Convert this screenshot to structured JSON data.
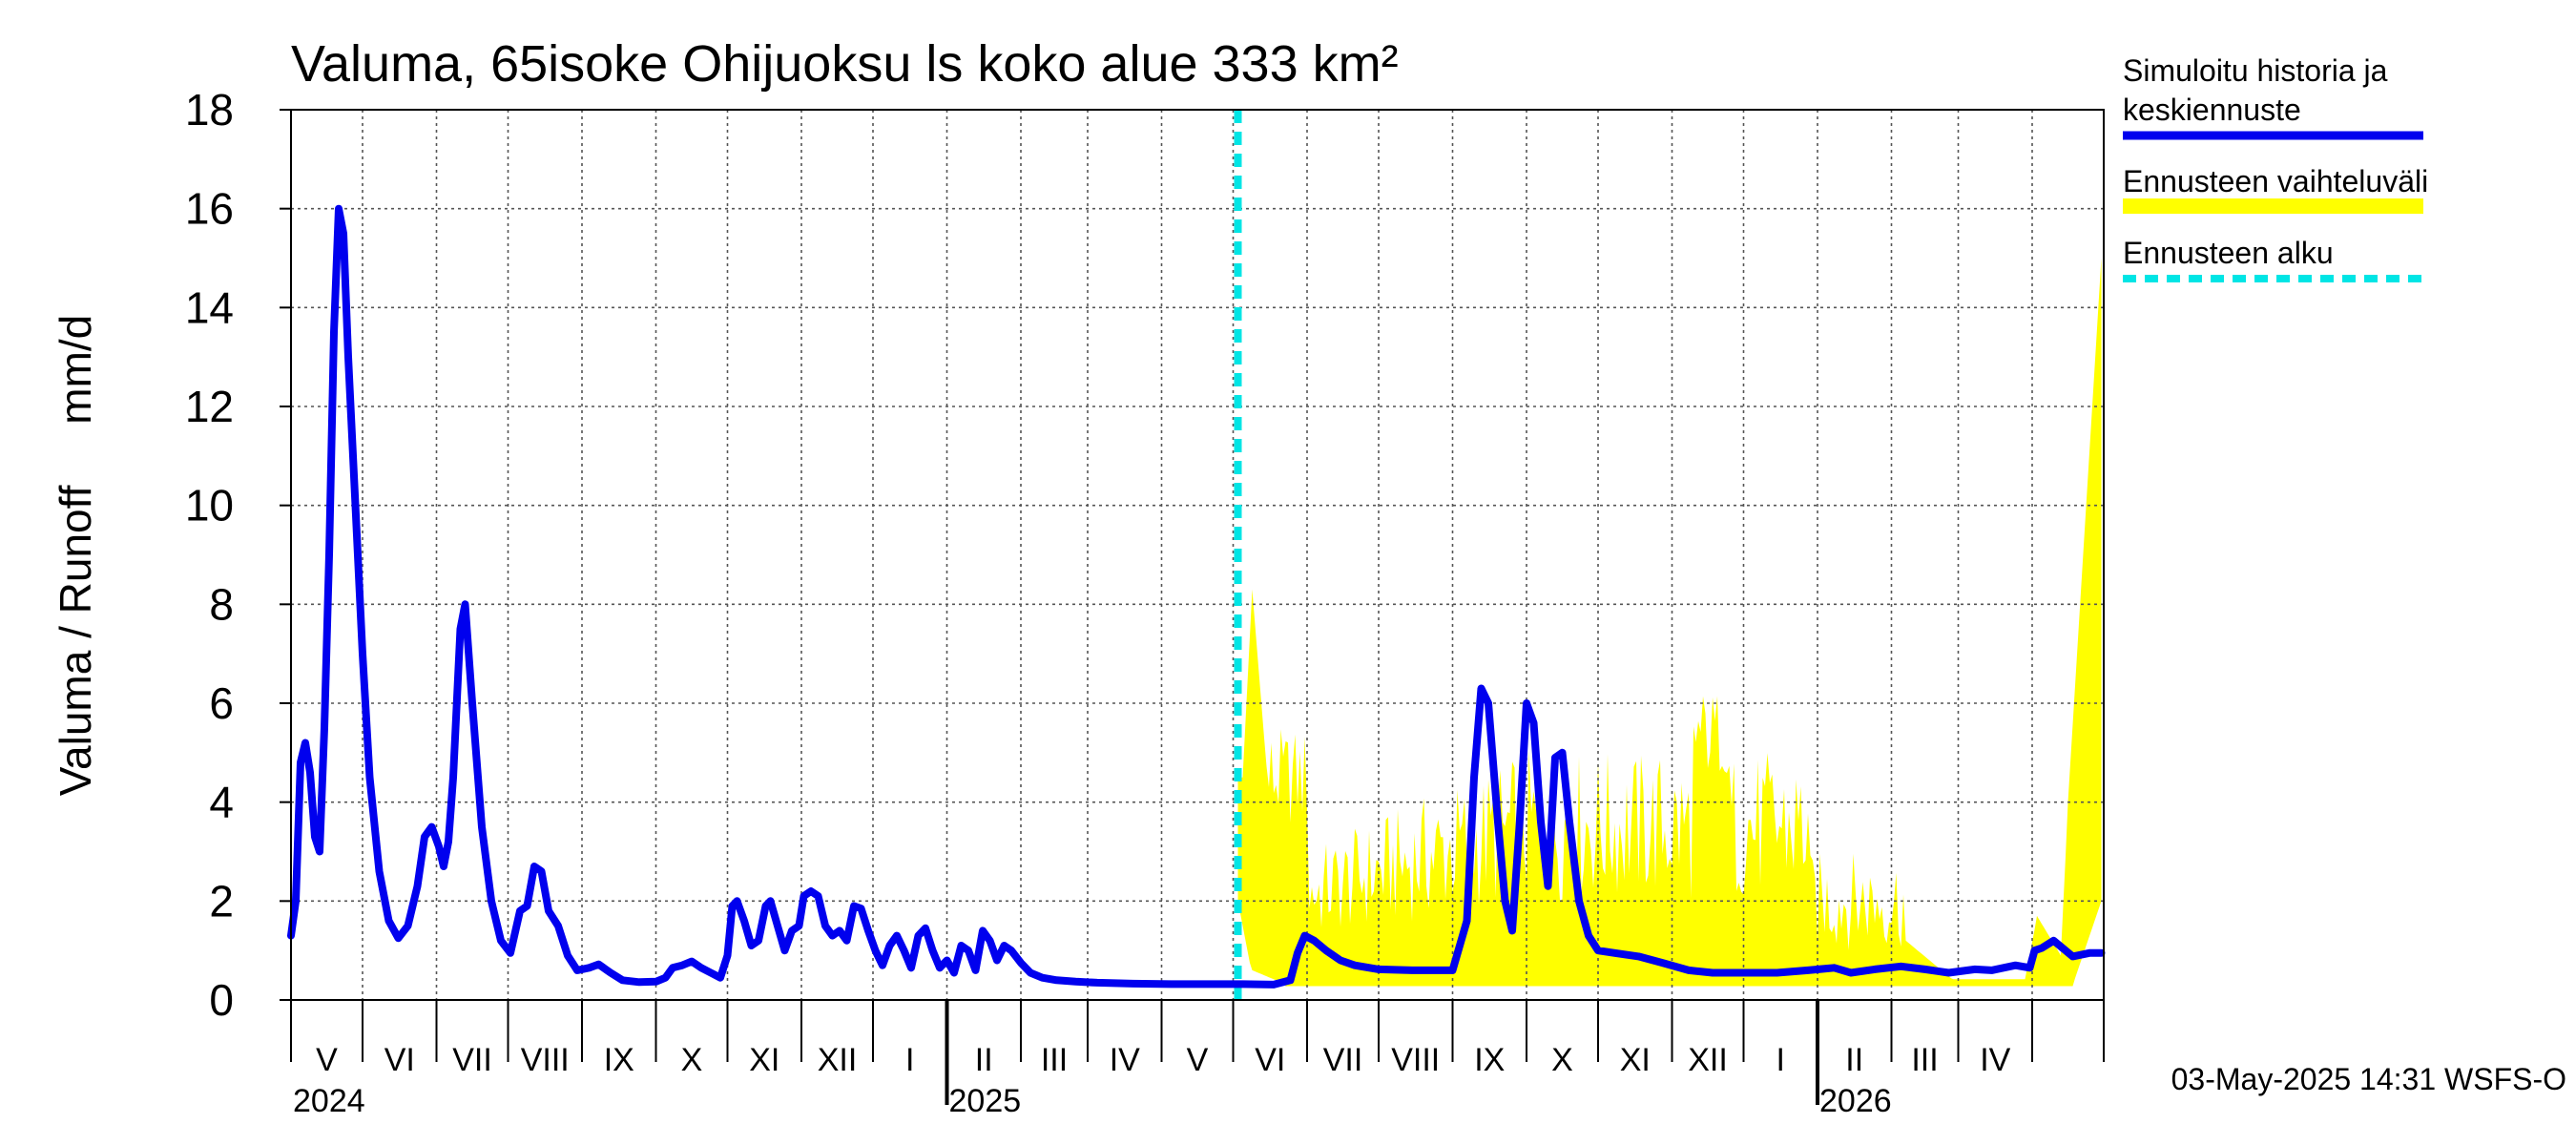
{
  "chart_data": {
    "type": "area",
    "title": "Valuma, 65isoke Ohijuoksu ls koko alue 333 km²",
    "ylabel": "Valuma / Runoff     mm/d",
    "xlabel": "",
    "ylim": [
      0,
      18
    ],
    "yticks": [
      0,
      2,
      4,
      6,
      8,
      10,
      12,
      14,
      16,
      18
    ],
    "xlim": [
      "2024-04-01",
      "2026-05-01"
    ],
    "grid": true,
    "legend_position": "right",
    "month_labels": [
      "V",
      "VI",
      "VII",
      "VIII",
      "IX",
      "X",
      "XI",
      "XII",
      "I",
      "II",
      "III",
      "IV",
      "V",
      "VI",
      "VII",
      "VIII",
      "IX",
      "X",
      "XI",
      "XII",
      "I",
      "II",
      "III",
      "IV"
    ],
    "year_labels": [
      "2024",
      "2025",
      "2026"
    ],
    "forecast_start": "2025-05-03",
    "series": [
      {
        "name": "Simuloitu historia ja keskiennuste",
        "color": "#0000ee",
        "points": [
          [
            "2024-04-01",
            1.3
          ],
          [
            "2024-04-03",
            2.0
          ],
          [
            "2024-04-05",
            4.8
          ],
          [
            "2024-04-07",
            5.2
          ],
          [
            "2024-04-09",
            4.6
          ],
          [
            "2024-04-11",
            3.3
          ],
          [
            "2024-04-13",
            3.0
          ],
          [
            "2024-04-15",
            5.5
          ],
          [
            "2024-04-17",
            9.0
          ],
          [
            "2024-04-19",
            13.5
          ],
          [
            "2024-04-21",
            16.0
          ],
          [
            "2024-04-23",
            15.5
          ],
          [
            "2024-04-25",
            13.0
          ],
          [
            "2024-04-28",
            10.0
          ],
          [
            "2024-05-01",
            7.0
          ],
          [
            "2024-05-04",
            4.5
          ],
          [
            "2024-05-08",
            2.6
          ],
          [
            "2024-05-12",
            1.6
          ],
          [
            "2024-05-16",
            1.25
          ],
          [
            "2024-05-20",
            1.5
          ],
          [
            "2024-05-24",
            2.3
          ],
          [
            "2024-05-27",
            3.3
          ],
          [
            "2024-05-30",
            3.5
          ],
          [
            "2024-06-02",
            3.1
          ],
          [
            "2024-06-04",
            2.7
          ],
          [
            "2024-06-06",
            3.2
          ],
          [
            "2024-06-08",
            4.5
          ],
          [
            "2024-06-11",
            7.5
          ],
          [
            "2024-06-13",
            8.0
          ],
          [
            "2024-06-16",
            6.0
          ],
          [
            "2024-06-20",
            3.5
          ],
          [
            "2024-06-24",
            2.0
          ],
          [
            "2024-06-28",
            1.2
          ],
          [
            "2024-07-02",
            0.95
          ],
          [
            "2024-07-06",
            1.8
          ],
          [
            "2024-07-09",
            1.9
          ],
          [
            "2024-07-12",
            2.7
          ],
          [
            "2024-07-15",
            2.6
          ],
          [
            "2024-07-18",
            1.8
          ],
          [
            "2024-07-22",
            1.5
          ],
          [
            "2024-07-26",
            0.9
          ],
          [
            "2024-07-30",
            0.6
          ],
          [
            "2024-08-04",
            0.65
          ],
          [
            "2024-08-08",
            0.72
          ],
          [
            "2024-08-13",
            0.55
          ],
          [
            "2024-08-18",
            0.4
          ],
          [
            "2024-08-25",
            0.36
          ],
          [
            "2024-09-01",
            0.37
          ],
          [
            "2024-09-05",
            0.45
          ],
          [
            "2024-09-08",
            0.65
          ],
          [
            "2024-09-12",
            0.7
          ],
          [
            "2024-09-16",
            0.78
          ],
          [
            "2024-09-20",
            0.65
          ],
          [
            "2024-09-24",
            0.55
          ],
          [
            "2024-09-28",
            0.45
          ],
          [
            "2024-10-01",
            0.9
          ],
          [
            "2024-10-03",
            1.9
          ],
          [
            "2024-10-05",
            2.0
          ],
          [
            "2024-10-08",
            1.6
          ],
          [
            "2024-10-11",
            1.1
          ],
          [
            "2024-10-14",
            1.2
          ],
          [
            "2024-10-17",
            1.9
          ],
          [
            "2024-10-19",
            2.0
          ],
          [
            "2024-10-22",
            1.5
          ],
          [
            "2024-10-25",
            1.0
          ],
          [
            "2024-10-28",
            1.4
          ],
          [
            "2024-10-31",
            1.5
          ],
          [
            "2024-11-02",
            2.1
          ],
          [
            "2024-11-05",
            2.2
          ],
          [
            "2024-11-08",
            2.1
          ],
          [
            "2024-11-11",
            1.5
          ],
          [
            "2024-11-14",
            1.3
          ],
          [
            "2024-11-17",
            1.4
          ],
          [
            "2024-11-20",
            1.2
          ],
          [
            "2024-11-23",
            1.9
          ],
          [
            "2024-11-26",
            1.85
          ],
          [
            "2024-11-29",
            1.4
          ],
          [
            "2024-12-02",
            1.0
          ],
          [
            "2024-12-05",
            0.7
          ],
          [
            "2024-12-08",
            1.1
          ],
          [
            "2024-12-11",
            1.3
          ],
          [
            "2024-12-14",
            1.0
          ],
          [
            "2024-12-17",
            0.65
          ],
          [
            "2024-12-20",
            1.3
          ],
          [
            "2024-12-23",
            1.45
          ],
          [
            "2024-12-26",
            1.0
          ],
          [
            "2024-12-29",
            0.65
          ],
          [
            "2025-01-01",
            0.8
          ],
          [
            "2025-01-04",
            0.55
          ],
          [
            "2025-01-07",
            1.1
          ],
          [
            "2025-01-10",
            1.0
          ],
          [
            "2025-01-13",
            0.6
          ],
          [
            "2025-01-16",
            1.4
          ],
          [
            "2025-01-19",
            1.2
          ],
          [
            "2025-01-22",
            0.8
          ],
          [
            "2025-01-25",
            1.1
          ],
          [
            "2025-01-28",
            1.0
          ],
          [
            "2025-02-01",
            0.75
          ],
          [
            "2025-02-05",
            0.55
          ],
          [
            "2025-02-10",
            0.45
          ],
          [
            "2025-02-16",
            0.4
          ],
          [
            "2025-02-24",
            0.37
          ],
          [
            "2025-03-05",
            0.35
          ],
          [
            "2025-03-20",
            0.33
          ],
          [
            "2025-04-05",
            0.32
          ],
          [
            "2025-04-20",
            0.32
          ],
          [
            "2025-05-05",
            0.32
          ],
          [
            "2025-05-18",
            0.31
          ],
          [
            "2025-05-25",
            0.4
          ],
          [
            "2025-05-28",
            0.95
          ],
          [
            "2025-05-31",
            1.3
          ],
          [
            "2025-06-04",
            1.2
          ],
          [
            "2025-06-09",
            1.0
          ],
          [
            "2025-06-15",
            0.8
          ],
          [
            "2025-06-21",
            0.7
          ],
          [
            "2025-07-01",
            0.62
          ],
          [
            "2025-07-15",
            0.6
          ],
          [
            "2025-08-01",
            0.6
          ],
          [
            "2025-08-07",
            1.6
          ],
          [
            "2025-08-10",
            4.5
          ],
          [
            "2025-08-13",
            6.3
          ],
          [
            "2025-08-16",
            6.0
          ],
          [
            "2025-08-20",
            3.6
          ],
          [
            "2025-08-23",
            2.0
          ],
          [
            "2025-08-26",
            1.4
          ],
          [
            "2025-08-29",
            3.5
          ],
          [
            "2025-09-01",
            6.0
          ],
          [
            "2025-09-04",
            5.6
          ],
          [
            "2025-09-07",
            3.6
          ],
          [
            "2025-09-10",
            2.3
          ],
          [
            "2025-09-13",
            4.9
          ],
          [
            "2025-09-16",
            5.0
          ],
          [
            "2025-09-19",
            3.6
          ],
          [
            "2025-09-23",
            2.0
          ],
          [
            "2025-09-27",
            1.3
          ],
          [
            "2025-10-01",
            1.0
          ],
          [
            "2025-10-08",
            0.95
          ],
          [
            "2025-10-18",
            0.88
          ],
          [
            "2025-10-28",
            0.75
          ],
          [
            "2025-11-08",
            0.6
          ],
          [
            "2025-11-18",
            0.55
          ],
          [
            "2025-12-01",
            0.55
          ],
          [
            "2025-12-15",
            0.55
          ],
          [
            "2025-12-28",
            0.6
          ],
          [
            "2026-01-08",
            0.65
          ],
          [
            "2026-01-15",
            0.55
          ],
          [
            "2026-01-25",
            0.62
          ],
          [
            "2026-02-05",
            0.68
          ],
          [
            "2026-02-15",
            0.62
          ],
          [
            "2026-02-25",
            0.55
          ],
          [
            "2026-03-08",
            0.62
          ],
          [
            "2026-03-15",
            0.6
          ],
          [
            "2026-03-25",
            0.7
          ],
          [
            "2026-03-31",
            0.65
          ],
          [
            "2026-04-02",
            1.0
          ],
          [
            "2026-04-05",
            1.05
          ],
          [
            "2026-04-10",
            1.2
          ],
          [
            "2026-04-18",
            0.88
          ],
          [
            "2026-04-25",
            0.95
          ],
          [
            "2026-04-30",
            0.95
          ]
        ]
      }
    ],
    "forecast_band": {
      "name": "Ennusteen vaihteluväli",
      "color": "#ffff00"
    },
    "forecast_start_label": "Ennusteen alku",
    "forecast_start_color": "#00e5e5"
  },
  "footer": "03-May-2025 14:31 WSFS-O"
}
